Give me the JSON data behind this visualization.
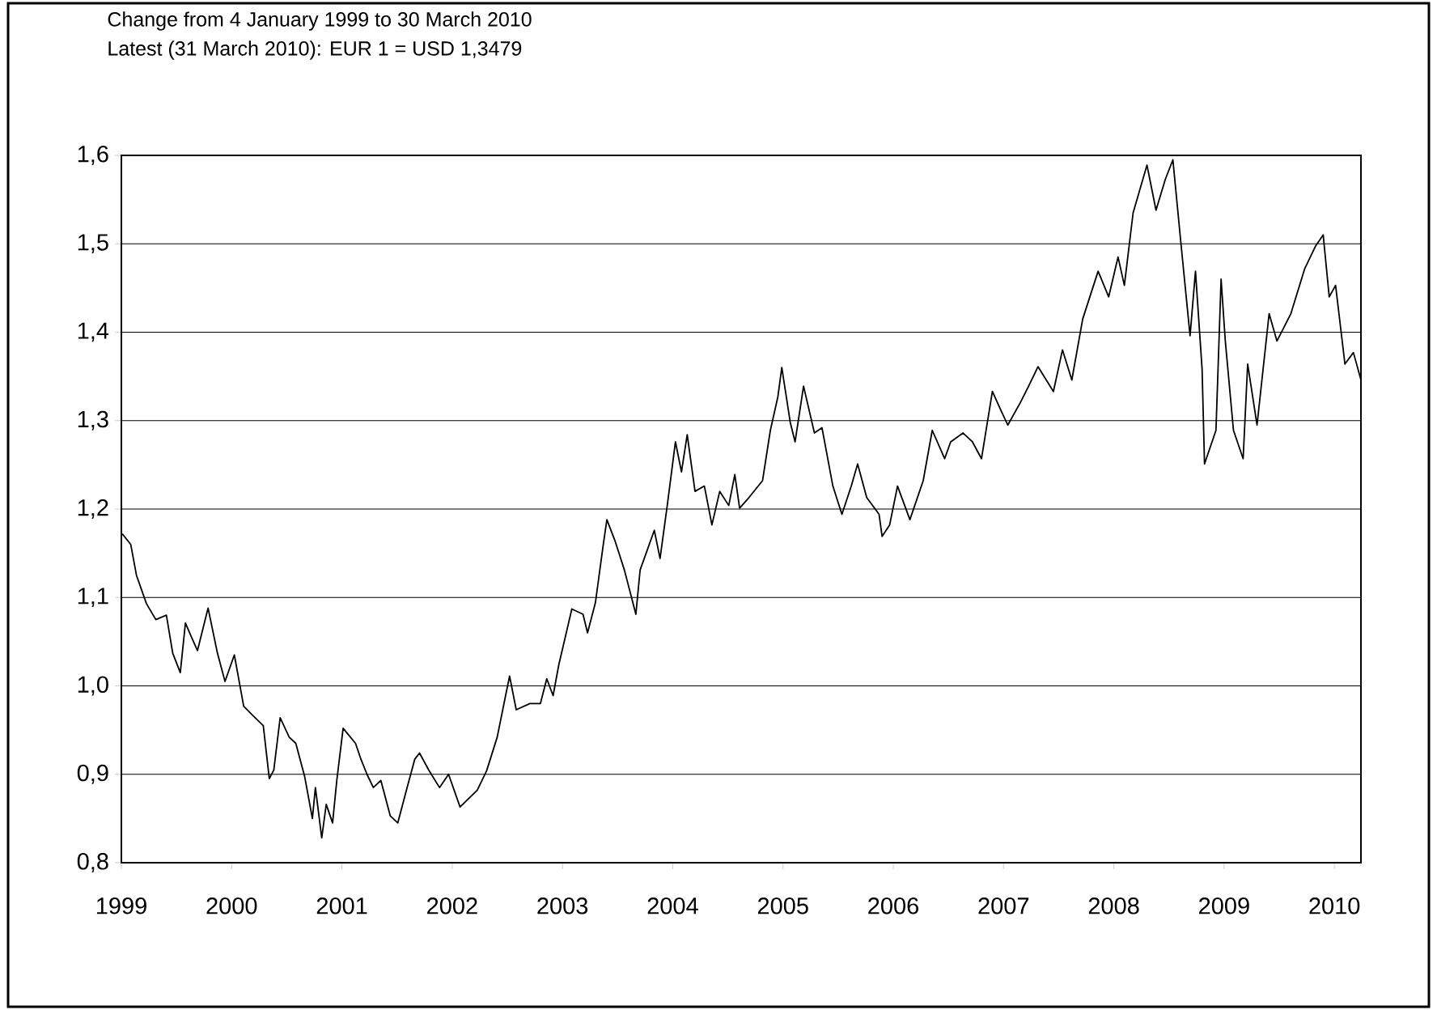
{
  "chart_data": {
    "type": "line",
    "title": "Change from 4 January 1999 to 30 March 2010",
    "subtitle": "Latest (31 March 2010): EUR 1 = USD 1,3479",
    "xlim": [
      "1999-01-01",
      "2010-03-30"
    ],
    "xticks": [
      {
        "value": "1999-01-01",
        "label": "1999"
      },
      {
        "value": "2000-01-01",
        "label": "2000"
      },
      {
        "value": "2001-01-01",
        "label": "2001"
      },
      {
        "value": "2002-01-01",
        "label": "2002"
      },
      {
        "value": "2003-01-01",
        "label": "2003"
      },
      {
        "value": "2004-01-01",
        "label": "2004"
      },
      {
        "value": "2005-01-01",
        "label": "2005"
      },
      {
        "value": "2006-01-01",
        "label": "2006"
      },
      {
        "value": "2007-01-01",
        "label": "2007"
      },
      {
        "value": "2008-01-01",
        "label": "2008"
      },
      {
        "value": "2009-01-01",
        "label": "2009"
      },
      {
        "value": "2010-01-01",
        "label": "2010"
      }
    ],
    "ylim": [
      0.8,
      1.6
    ],
    "yticks": [
      {
        "value": 0.8,
        "label": "0,8"
      },
      {
        "value": 0.9,
        "label": "0,9"
      },
      {
        "value": 1.0,
        "label": "1,0"
      },
      {
        "value": 1.1,
        "label": "1,1"
      },
      {
        "value": 1.2,
        "label": "1,2"
      },
      {
        "value": 1.3,
        "label": "1,3"
      },
      {
        "value": 1.4,
        "label": "1,4"
      },
      {
        "value": 1.5,
        "label": "1,5"
      },
      {
        "value": 1.6,
        "label": "1,6"
      }
    ],
    "grid": "y",
    "marker": "none",
    "line_style": "solid",
    "series": [
      {
        "color": "#000000",
        "x": [
          "1999-01-04",
          "1999-02-01",
          "1999-02-20",
          "1999-03-25",
          "1999-04-25",
          "1999-05-30",
          "1999-06-20",
          "1999-07-15",
          "1999-08-01",
          "1999-08-25",
          "1999-09-10",
          "1999-10-15",
          "1999-11-15",
          "1999-12-10",
          "2000-01-10",
          "2000-02-10",
          "2000-03-10",
          "2000-04-15",
          "2000-05-05",
          "2000-05-20",
          "2000-06-10",
          "2000-07-10",
          "2000-08-01",
          "2000-08-30",
          "2000-09-25",
          "2000-10-05",
          "2000-10-26",
          "2000-11-10",
          "2000-12-01",
          "2000-12-15",
          "2001-01-05",
          "2001-02-15",
          "2001-03-05",
          "2001-03-25",
          "2001-04-15",
          "2001-05-10",
          "2001-06-10",
          "2001-07-05",
          "2001-08-01",
          "2001-08-30",
          "2001-09-15",
          "2001-10-15",
          "2001-11-20",
          "2001-12-20",
          "2002-01-27",
          "2002-03-25",
          "2002-04-25",
          "2002-05-30",
          "2002-06-25",
          "2002-07-10",
          "2002-08-01",
          "2002-09-15",
          "2002-10-20",
          "2002-11-10",
          "2002-12-01",
          "2002-12-20",
          "2003-01-15",
          "2003-02-01",
          "2003-03-10",
          "2003-03-25",
          "2003-04-20",
          "2003-05-15",
          "2003-05-28",
          "2003-06-25",
          "2003-07-25",
          "2003-09-01",
          "2003-09-15",
          "2003-11-01",
          "2003-11-20",
          "2003-12-15",
          "2004-01-10",
          "2004-01-30",
          "2004-02-18",
          "2004-03-15",
          "2004-04-15",
          "2004-05-10",
          "2004-06-05",
          "2004-07-05",
          "2004-07-25",
          "2004-08-10",
          "2004-09-10",
          "2004-10-25",
          "2004-11-20",
          "2004-12-15",
          "2004-12-28",
          "2005-01-25",
          "2005-02-10",
          "2005-03-10",
          "2005-04-15",
          "2005-05-10",
          "2005-06-15",
          "2005-07-15",
          "2005-08-15",
          "2005-09-05",
          "2005-10-05",
          "2005-11-15",
          "2005-11-25",
          "2005-12-20",
          "2006-01-15",
          "2006-02-25",
          "2006-04-10",
          "2006-05-10",
          "2006-06-20",
          "2006-07-10",
          "2006-08-20",
          "2006-09-20",
          "2006-10-20",
          "2006-11-25",
          "2006-12-20",
          "2007-01-15",
          "2007-02-25",
          "2007-03-25",
          "2007-04-25",
          "2007-06-15",
          "2007-07-15",
          "2007-08-15",
          "2007-09-20",
          "2007-11-10",
          "2007-12-15",
          "2008-01-15",
          "2008-02-05",
          "2008-03-05",
          "2008-04-20",
          "2008-05-20",
          "2008-06-20",
          "2008-07-15",
          "2008-08-10",
          "2008-09-10",
          "2008-09-28",
          "2008-10-20",
          "2008-10-28",
          "2008-12-05",
          "2008-12-22",
          "2009-01-05",
          "2009-02-01",
          "2009-03-05",
          "2009-03-20",
          "2009-04-20",
          "2009-05-30",
          "2009-06-25",
          "2009-08-10",
          "2009-09-25",
          "2009-10-30",
          "2009-11-25",
          "2009-12-15",
          "2010-01-05",
          "2010-02-05",
          "2010-03-05",
          "2010-03-30"
        ],
        "values": [
          1.172,
          1.16,
          1.125,
          1.093,
          1.075,
          1.08,
          1.037,
          1.015,
          1.071,
          1.052,
          1.04,
          1.088,
          1.037,
          1.005,
          1.035,
          0.977,
          0.967,
          0.955,
          0.895,
          0.905,
          0.964,
          0.942,
          0.935,
          0.898,
          0.85,
          0.885,
          0.828,
          0.866,
          0.845,
          0.893,
          0.952,
          0.935,
          0.917,
          0.9,
          0.885,
          0.893,
          0.853,
          0.845,
          0.88,
          0.917,
          0.924,
          0.905,
          0.885,
          0.9,
          0.863,
          0.882,
          0.904,
          0.942,
          0.986,
          1.011,
          0.973,
          0.98,
          0.98,
          1.008,
          0.989,
          1.024,
          1.062,
          1.087,
          1.081,
          1.06,
          1.094,
          1.157,
          1.188,
          1.163,
          1.131,
          1.081,
          1.131,
          1.176,
          1.144,
          1.207,
          1.276,
          1.242,
          1.284,
          1.22,
          1.226,
          1.182,
          1.22,
          1.204,
          1.239,
          1.201,
          1.213,
          1.232,
          1.289,
          1.327,
          1.36,
          1.298,
          1.276,
          1.339,
          1.286,
          1.292,
          1.226,
          1.194,
          1.226,
          1.251,
          1.213,
          1.194,
          1.169,
          1.182,
          1.226,
          1.188,
          1.232,
          1.289,
          1.257,
          1.276,
          1.286,
          1.276,
          1.257,
          1.333,
          1.314,
          1.295,
          1.32,
          1.339,
          1.361,
          1.333,
          1.38,
          1.346,
          1.415,
          1.469,
          1.44,
          1.485,
          1.453,
          1.535,
          1.589,
          1.538,
          1.573,
          1.595,
          1.503,
          1.396,
          1.469,
          1.358,
          1.251,
          1.289,
          1.46,
          1.39,
          1.289,
          1.257,
          1.364,
          1.295,
          1.421,
          1.39,
          1.421,
          1.472,
          1.497,
          1.51,
          1.44,
          1.453,
          1.364,
          1.377,
          1.346
        ]
      }
    ]
  }
}
